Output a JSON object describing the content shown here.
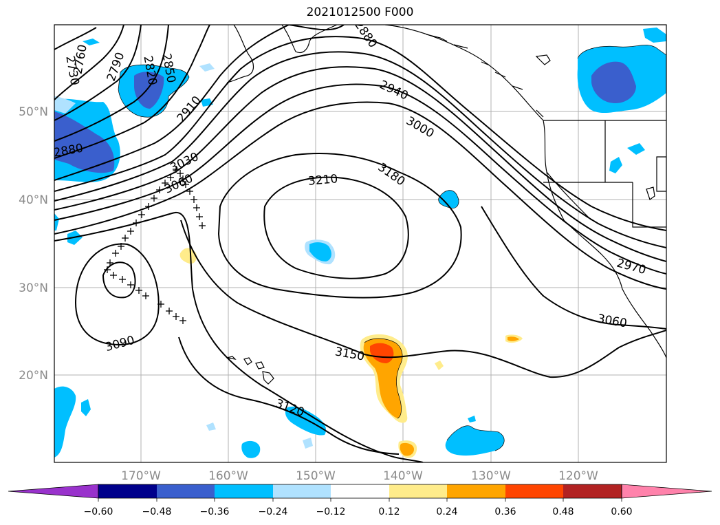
{
  "title": "2021012500 F000",
  "lon_labels": [
    "170°W",
    "160°W",
    "150°W",
    "140°W",
    "130°W",
    "120°W"
  ],
  "lat_labels": [
    "50°N",
    "40°N",
    "30°N",
    "20°N"
  ],
  "contour_labels": [
    "2730",
    "2760",
    "2790",
    "2820",
    "2850",
    "2880",
    "2880",
    "2910",
    "2940",
    "2970",
    "3000",
    "3030",
    "3060",
    "3060",
    "3090",
    "3120",
    "3150",
    "3180",
    "3210"
  ],
  "colorbar": {
    "ticks": [
      "−0.60",
      "−0.48",
      "−0.36",
      "−0.24",
      "−0.12",
      "0.12",
      "0.24",
      "0.36",
      "0.48",
      "0.60"
    ],
    "colors": [
      "#9932cc",
      "#00008b",
      "#3a5fcd",
      "#00bfff",
      "#b0e2ff",
      "#ffffff",
      "#ffec8b",
      "#ffa500",
      "#ff4500",
      "#b22222",
      "#ff82ab"
    ]
  }
}
